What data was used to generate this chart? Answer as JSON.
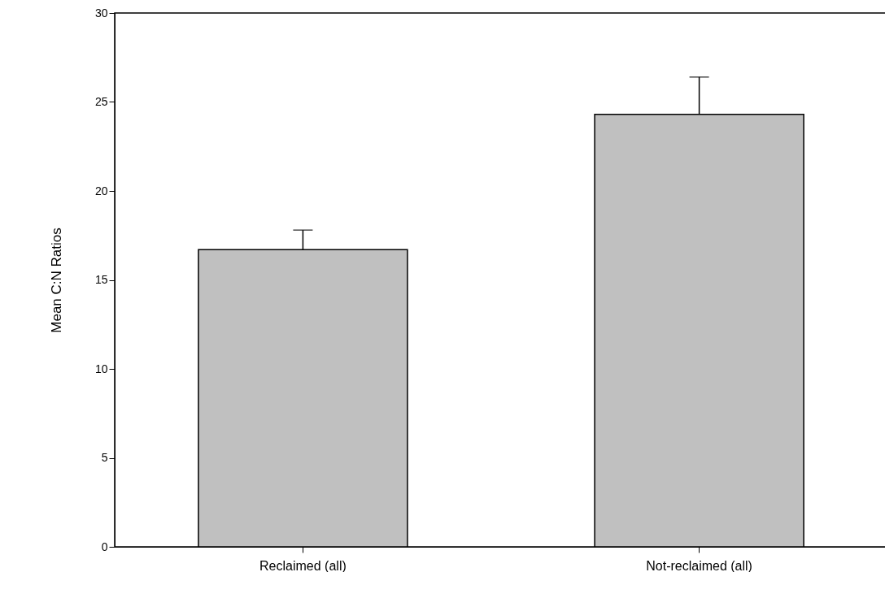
{
  "chart_data": {
    "type": "bar",
    "ylabel": "Mean C:N Ratios",
    "categories": [
      "Reclaimed (all)",
      "Not-reclaimed (all)"
    ],
    "values": [
      16.7,
      24.3
    ],
    "errors": [
      [
        16.7,
        17.8
      ],
      [
        24.3,
        26.4
      ]
    ],
    "color": "#c0c0c0",
    "ylim": [
      0,
      30
    ],
    "yticks": [
      0,
      5,
      10,
      15,
      20,
      25,
      30
    ],
    "grid": false
  }
}
